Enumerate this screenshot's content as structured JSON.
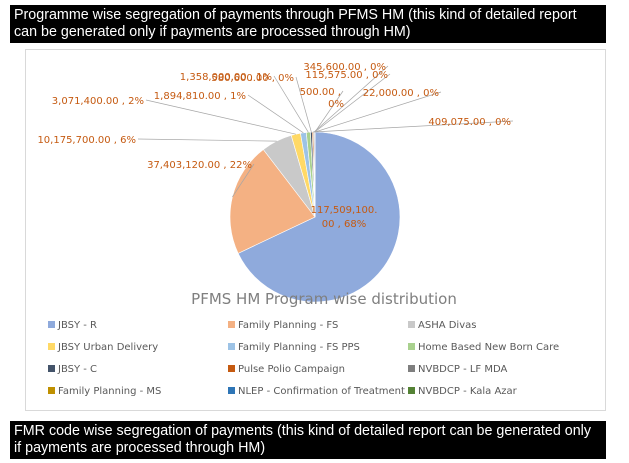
{
  "banner_top": {
    "line1": "Programme wise segregation of payments through PFMS HM (this kind of detailed report",
    "line2": "can be generated only if payments are processed through HM)"
  },
  "banner_bottom": {
    "line1": "FMR code wise segregation of payments (this kind of detailed report can be generated only",
    "line2": "if payments are processed through HM)"
  },
  "chart_data": {
    "type": "pie",
    "title": "PFMS HM Program wise distribution",
    "legend_position": "bottom",
    "series": [
      {
        "name": "JBSY - R",
        "value": 117509100.0,
        "label": "117,509,100.00 , 68%",
        "color": "#8faadc"
      },
      {
        "name": "Family Planning - FS",
        "value": 37403120.0,
        "label": "37,403,120.00 , 22%",
        "color": "#f4b183"
      },
      {
        "name": "ASHA Divas",
        "value": 10175700.0,
        "label": "10,175,700.00 , 6%",
        "color": "#c9c9c9"
      },
      {
        "name": "JBSY Urban Delivery",
        "value": 3071400.0,
        "label": "3,071,400.00 , 2%",
        "color": "#ffd966"
      },
      {
        "name": "Family Planning - FS PPS",
        "value": 1894810.0,
        "label": "1,894,810.00 , 1%",
        "color": "#9dc3e6"
      },
      {
        "name": "Home Based New Born Care",
        "value": 1358000.0,
        "label": "1,358,000.00 , 1%",
        "color": "#a9d18e"
      },
      {
        "name": "JBSY - C",
        "value": 580600.0,
        "label": "580,600.00 , 0%",
        "color": "#44546a"
      },
      {
        "name": "Pulse Polio Campaign",
        "value": 409075.0,
        "label": "409,075.00 , 0%",
        "color": "#c55a11"
      },
      {
        "name": "NVBDCP - LF MDA",
        "value": 345600.0,
        "label": "345,600.00 , 0%",
        "color": "#7f7f7f"
      },
      {
        "name": "Family Planning - MS",
        "value": 115575.0,
        "label": "115,575.00 , 0%",
        "color": "#bf9000"
      },
      {
        "name": "NLEP - Confirmation of Treatment",
        "value": 22000.0,
        "label": "22,000.00 , 0%",
        "color": "#2e75b6"
      },
      {
        "name": "NVBDCP - Kala Azar",
        "value": 500.0,
        "label": "500.00 , 0%",
        "color": "#548235"
      }
    ]
  }
}
